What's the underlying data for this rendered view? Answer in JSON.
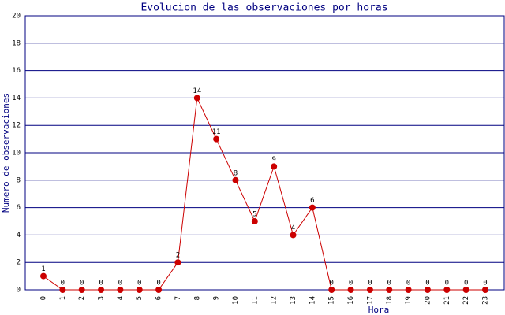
{
  "chart_data": {
    "type": "line",
    "title": "Evolucion de las observaciones por horas",
    "x_label": "Hora",
    "y_label": "Numero de observaciones",
    "categories": [
      "0",
      "1",
      "2",
      "3",
      "4",
      "5",
      "6",
      "7",
      "8",
      "9",
      "10",
      "11",
      "12",
      "13",
      "14",
      "15",
      "16",
      "17",
      "18",
      "19",
      "20",
      "21",
      "22",
      "23"
    ],
    "values": [
      1,
      0,
      0,
      0,
      0,
      0,
      0,
      2,
      14,
      11,
      8,
      5,
      9,
      4,
      6,
      0,
      0,
      0,
      0,
      0,
      0,
      0,
      0,
      0
    ],
    "color": "#cc0000",
    "grid_color": "#000080",
    "ylim": [
      0,
      20
    ],
    "yticks": [
      0,
      2,
      4,
      6,
      8,
      10,
      12,
      14,
      16,
      18,
      20
    ],
    "grid": true
  }
}
